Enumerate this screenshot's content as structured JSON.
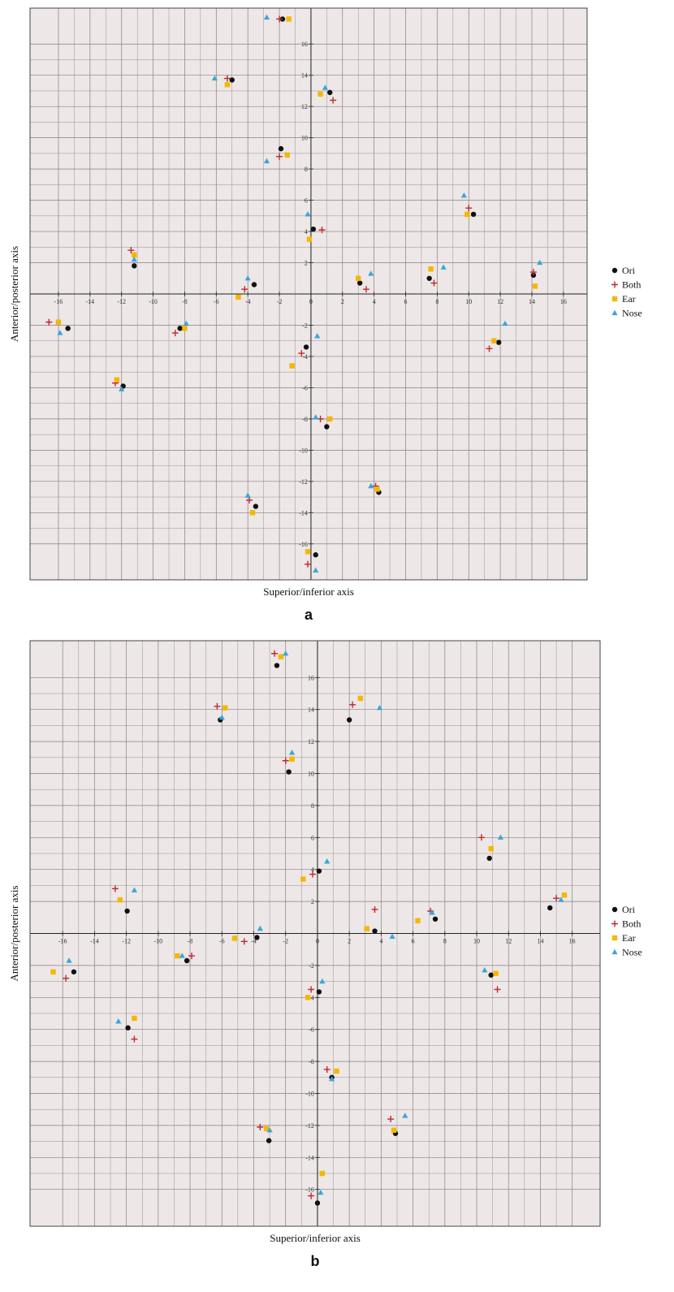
{
  "chart_data": [
    {
      "type": "scatter",
      "panel_label": "a",
      "xlabel": "Superior/inferior axis",
      "ylabel": "Anterior/posterior axis",
      "xlim": [
        -17.8,
        17.5
      ],
      "ylim": [
        -18.3,
        18.3
      ],
      "xticks": [
        -16,
        -14,
        -12,
        -10,
        -8,
        -6,
        -4,
        -2,
        0,
        2,
        4,
        6,
        8,
        10,
        12,
        14,
        16
      ],
      "yticks": [
        -16,
        -14,
        -12,
        -10,
        -8,
        -6,
        -4,
        -2,
        2,
        4,
        6,
        8,
        10,
        12,
        14,
        16
      ],
      "grid": true,
      "legend": "right",
      "series": [
        {
          "name": "Ori",
          "color": "#111111",
          "marker": "circle",
          "x": [
            -1.8,
            -5.0,
            1.2,
            -1.9,
            10.3,
            0.15,
            -11.2,
            -3.6,
            3.1,
            7.5,
            14.1,
            -15.4,
            -8.3,
            11.9,
            -0.3,
            -11.9,
            1.0,
            4.3,
            -3.5,
            0.3
          ],
          "y": [
            17.6,
            13.7,
            12.9,
            9.3,
            5.1,
            4.15,
            1.8,
            0.6,
            0.7,
            1.0,
            1.2,
            -2.2,
            -2.2,
            -3.1,
            -3.4,
            -5.9,
            -8.5,
            -12.7,
            -13.6,
            -16.7
          ]
        },
        {
          "name": "Both",
          "color": "#c0272d",
          "marker": "plus",
          "x": [
            -2.0,
            -5.3,
            1.4,
            -2.0,
            10.0,
            0.7,
            -11.4,
            -4.2,
            3.5,
            7.8,
            14.1,
            -16.6,
            -8.6,
            11.3,
            -0.6,
            -12.4,
            0.6,
            4.1,
            -3.9,
            -0.2
          ],
          "y": [
            17.6,
            13.8,
            12.4,
            8.8,
            5.5,
            4.1,
            2.8,
            0.3,
            0.3,
            0.7,
            1.4,
            -1.8,
            -2.5,
            -3.5,
            -3.8,
            -5.7,
            -8.0,
            -12.3,
            -13.2,
            -17.3
          ]
        },
        {
          "name": "Ear",
          "color": "#f5b700",
          "marker": "square",
          "x": [
            -1.4,
            -5.3,
            0.6,
            -1.5,
            9.9,
            -0.1,
            -11.2,
            -4.6,
            3.0,
            7.6,
            14.2,
            -16.0,
            -8.0,
            11.6,
            -1.2,
            -12.3,
            1.2,
            4.2,
            -3.7,
            -0.2
          ],
          "y": [
            17.6,
            13.4,
            12.8,
            8.9,
            5.1,
            3.5,
            2.5,
            -0.2,
            1.0,
            1.6,
            0.5,
            -1.8,
            -2.2,
            -3.0,
            -4.6,
            -5.5,
            -8.0,
            -12.5,
            -14.0,
            -16.5
          ]
        },
        {
          "name": "Nose",
          "color": "#3aa6d8",
          "marker": "triangle",
          "x": [
            -2.8,
            -6.1,
            0.9,
            -2.8,
            9.7,
            -0.2,
            -11.2,
            -4.0,
            3.8,
            8.4,
            14.5,
            -15.9,
            -7.9,
            12.3,
            0.4,
            -12.0,
            0.3,
            3.8,
            -4.0,
            0.3
          ],
          "y": [
            17.7,
            13.8,
            13.2,
            8.5,
            6.3,
            5.1,
            2.2,
            1.0,
            1.3,
            1.7,
            2.0,
            -2.5,
            -1.9,
            -1.9,
            -2.7,
            -6.1,
            -7.9,
            -12.3,
            -12.9,
            -17.7
          ]
        }
      ]
    },
    {
      "type": "scatter",
      "panel_label": "b",
      "xlabel": "Superior/inferior axis",
      "ylabel": "Anterior/posterior axis",
      "xlim": [
        -18.05,
        17.75
      ],
      "ylim": [
        -18.3,
        18.3
      ],
      "xticks": [
        -16,
        -14,
        -12,
        -10,
        -8,
        -6,
        -4,
        -2,
        0,
        2,
        4,
        6,
        8,
        10,
        12,
        14,
        16
      ],
      "yticks": [
        -16,
        -14,
        -12,
        -10,
        -8,
        -6,
        -4,
        -2,
        2,
        4,
        6,
        8,
        10,
        12,
        14,
        16
      ],
      "grid": true,
      "legend": "right",
      "series": [
        {
          "name": "Ori",
          "color": "#111111",
          "marker": "circle",
          "x": [
            -2.55,
            -6.1,
            2.0,
            -1.8,
            10.8,
            0.1,
            -11.95,
            -3.8,
            3.6,
            7.4,
            14.6,
            -15.3,
            -8.2,
            10.9,
            0.1,
            -11.9,
            0.9,
            4.9,
            -3.05,
            0.0
          ],
          "y": [
            16.75,
            13.35,
            13.35,
            10.1,
            4.7,
            3.9,
            1.4,
            -0.25,
            0.15,
            0.9,
            1.6,
            -2.4,
            -1.7,
            -2.6,
            -3.65,
            -5.9,
            -9.0,
            -12.5,
            -12.95,
            -16.85
          ]
        },
        {
          "name": "Both",
          "color": "#c0272d",
          "marker": "plus",
          "x": [
            -2.7,
            -6.3,
            2.2,
            -2.0,
            10.3,
            -0.3,
            -12.7,
            -4.6,
            3.6,
            7.1,
            15.0,
            -15.8,
            -7.9,
            11.3,
            -0.4,
            -11.5,
            0.6,
            4.6,
            -3.6,
            -0.4
          ],
          "y": [
            17.5,
            14.2,
            14.3,
            10.8,
            6.0,
            3.7,
            2.8,
            -0.5,
            1.5,
            1.4,
            2.2,
            -2.8,
            -1.4,
            -3.5,
            -3.5,
            -6.6,
            -8.5,
            -11.6,
            -12.1,
            -16.4
          ]
        },
        {
          "name": "Ear",
          "color": "#f5b700",
          "marker": "square",
          "x": [
            -2.3,
            -5.8,
            2.7,
            -1.6,
            10.9,
            -0.9,
            -12.4,
            -5.2,
            3.1,
            6.3,
            15.5,
            -16.6,
            -8.8,
            11.2,
            -0.6,
            -11.5,
            1.2,
            4.8,
            -3.2,
            0.3
          ],
          "y": [
            17.3,
            14.1,
            14.7,
            10.9,
            5.3,
            3.4,
            2.1,
            -0.3,
            0.3,
            0.8,
            2.4,
            -2.4,
            -1.4,
            -2.5,
            -4.0,
            -5.3,
            -8.6,
            -12.3,
            -12.2,
            -15.0
          ]
        },
        {
          "name": "Nose",
          "color": "#3aa6d8",
          "marker": "triangle",
          "x": [
            -2.0,
            -6.0,
            3.9,
            -1.6,
            11.5,
            0.6,
            -11.5,
            -3.6,
            4.7,
            7.2,
            15.3,
            -15.6,
            -8.5,
            10.5,
            0.3,
            -12.5,
            0.9,
            5.5,
            -3.0,
            0.2
          ],
          "y": [
            17.5,
            13.5,
            14.1,
            11.3,
            6.0,
            4.5,
            2.7,
            0.3,
            -0.2,
            1.3,
            2.1,
            -1.7,
            -1.4,
            -2.3,
            -3.0,
            -5.5,
            -9.1,
            -11.4,
            -12.3,
            -16.2
          ]
        }
      ]
    }
  ]
}
